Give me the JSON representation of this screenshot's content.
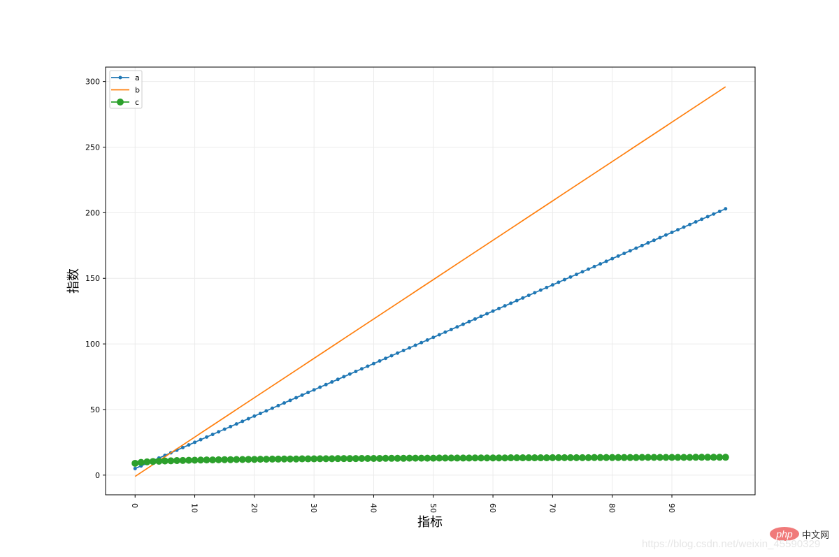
{
  "chart_data": {
    "type": "line",
    "title": "",
    "xlabel": "指标",
    "ylabel": "指数",
    "xlim": [
      -4.95,
      103.95
    ],
    "ylim": [
      -15,
      311
    ],
    "xticks": [
      0,
      10,
      20,
      30,
      40,
      50,
      60,
      70,
      80,
      90
    ],
    "yticks": [
      0,
      50,
      100,
      150,
      200,
      250,
      300
    ],
    "xtick_rotation": "vertical",
    "grid": true,
    "legend": "top-left",
    "x": [
      0,
      1,
      2,
      3,
      4,
      5,
      6,
      7,
      8,
      9,
      10,
      11,
      12,
      13,
      14,
      15,
      16,
      17,
      18,
      19,
      20,
      21,
      22,
      23,
      24,
      25,
      26,
      27,
      28,
      29,
      30,
      31,
      32,
      33,
      34,
      35,
      36,
      37,
      38,
      39,
      40,
      41,
      42,
      43,
      44,
      45,
      46,
      47,
      48,
      49,
      50,
      51,
      52,
      53,
      54,
      55,
      56,
      57,
      58,
      59,
      60,
      61,
      62,
      63,
      64,
      65,
      66,
      67,
      68,
      69,
      70,
      71,
      72,
      73,
      74,
      75,
      76,
      77,
      78,
      79,
      80,
      81,
      82,
      83,
      84,
      85,
      86,
      87,
      88,
      89,
      90,
      91,
      92,
      93,
      94,
      95,
      96,
      97,
      98,
      99
    ],
    "series": [
      {
        "name": "a",
        "color": "#1f77b4",
        "marker": "small-dot",
        "values": [
          5,
          7,
          9,
          11,
          13,
          15,
          17,
          19,
          21,
          23,
          25,
          27,
          29,
          31,
          33,
          35,
          37,
          39,
          41,
          43,
          45,
          47,
          49,
          51,
          53,
          55,
          57,
          59,
          61,
          63,
          65,
          67,
          69,
          71,
          73,
          75,
          77,
          79,
          81,
          83,
          85,
          87,
          89,
          91,
          93,
          95,
          97,
          99,
          101,
          103,
          105,
          107,
          109,
          111,
          113,
          115,
          117,
          119,
          121,
          123,
          125,
          127,
          129,
          131,
          133,
          135,
          137,
          139,
          141,
          143,
          145,
          147,
          149,
          151,
          153,
          155,
          157,
          159,
          161,
          163,
          165,
          167,
          169,
          171,
          173,
          175,
          177,
          179,
          181,
          183,
          185,
          187,
          189,
          191,
          193,
          195,
          197,
          199,
          201,
          203
        ]
      },
      {
        "name": "b",
        "color": "#ff7f0e",
        "marker": "none",
        "values": [
          -1,
          2,
          5,
          8,
          11,
          14,
          17,
          20,
          23,
          26,
          29,
          32,
          35,
          38,
          41,
          44,
          47,
          50,
          53,
          56,
          59,
          62,
          65,
          68,
          71,
          74,
          77,
          80,
          83,
          86,
          89,
          92,
          95,
          98,
          101,
          104,
          107,
          110,
          113,
          116,
          119,
          122,
          125,
          128,
          131,
          134,
          137,
          140,
          143,
          146,
          149,
          152,
          155,
          158,
          161,
          164,
          167,
          170,
          173,
          176,
          179,
          182,
          185,
          188,
          191,
          194,
          197,
          200,
          203,
          206,
          209,
          212,
          215,
          218,
          221,
          224,
          227,
          230,
          233,
          236,
          239,
          242,
          245,
          248,
          251,
          254,
          257,
          260,
          263,
          266,
          269,
          272,
          275,
          278,
          281,
          284,
          287,
          290,
          293,
          296
        ]
      },
      {
        "name": "c",
        "color": "#2ca02c",
        "marker": "large-dot",
        "values": [
          9.0,
          9.7,
          10.1,
          10.4,
          10.6,
          10.8,
          10.9,
          11.1,
          11.2,
          11.3,
          11.4,
          11.5,
          11.6,
          11.6,
          11.7,
          11.8,
          11.8,
          11.9,
          11.9,
          12.0,
          12.0,
          12.1,
          12.1,
          12.2,
          12.2,
          12.3,
          12.3,
          12.3,
          12.4,
          12.4,
          12.4,
          12.5,
          12.5,
          12.5,
          12.6,
          12.6,
          12.6,
          12.6,
          12.7,
          12.7,
          12.7,
          12.7,
          12.8,
          12.8,
          12.8,
          12.8,
          12.9,
          12.9,
          12.9,
          12.9,
          12.9,
          13.0,
          13.0,
          13.0,
          13.0,
          13.0,
          13.0,
          13.1,
          13.1,
          13.1,
          13.1,
          13.1,
          13.1,
          13.2,
          13.2,
          13.2,
          13.2,
          13.2,
          13.2,
          13.2,
          13.3,
          13.3,
          13.3,
          13.3,
          13.3,
          13.3,
          13.3,
          13.4,
          13.4,
          13.4,
          13.4,
          13.4,
          13.4,
          13.4,
          13.4,
          13.5,
          13.5,
          13.5,
          13.5,
          13.5,
          13.5,
          13.5,
          13.5,
          13.5,
          13.6,
          13.6,
          13.6,
          13.6,
          13.6,
          13.6
        ]
      }
    ]
  },
  "watermark": {
    "logo": "php",
    "logo_cn": "中文网",
    "url": "https://blog.csdn.net/weixin_45590329"
  }
}
